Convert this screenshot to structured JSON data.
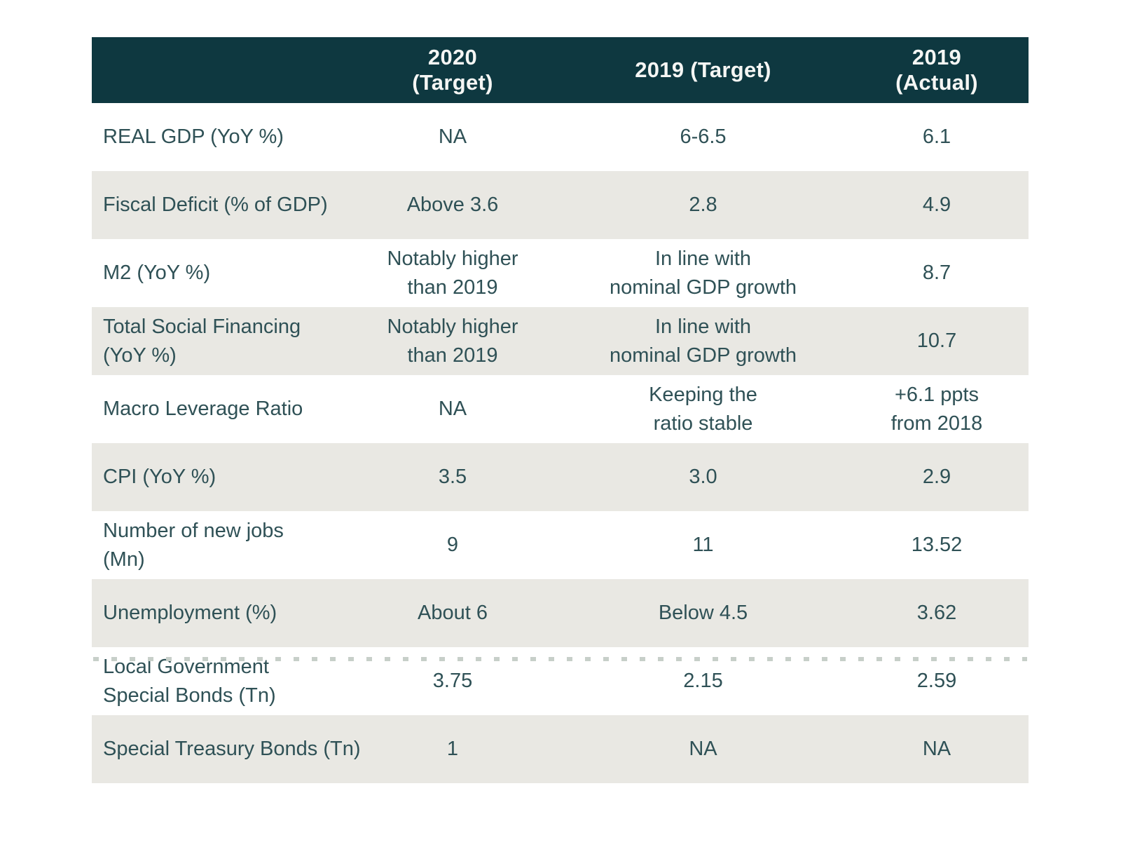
{
  "chart_data": {
    "type": "table",
    "title": "",
    "columns": [
      "",
      "2020 (Target)",
      "2019 (Target)",
      "2019 (Actual)"
    ],
    "rows": [
      {
        "label": "REAL GDP (YoY %)",
        "values": [
          "NA",
          "6-6.5",
          "6.1"
        ]
      },
      {
        "label": "Fiscal Deficit (% of GDP)",
        "values": [
          "Above 3.6",
          "2.8",
          "4.9"
        ]
      },
      {
        "label": "M2 (YoY %)",
        "values": [
          "Notably higher\nthan 2019",
          "In line with\nnominal GDP growth",
          "8.7"
        ]
      },
      {
        "label": "Total Social Financing\n(YoY %)",
        "values": [
          "Notably higher\nthan 2019",
          "In line with\nnominal GDP growth",
          "10.7"
        ]
      },
      {
        "label": "Macro Leverage Ratio",
        "values": [
          "NA",
          "Keeping the\nratio stable",
          "+6.1 ppts\nfrom 2018"
        ]
      },
      {
        "label": "CPI (YoY %)",
        "values": [
          "3.5",
          "3.0",
          "2.9"
        ]
      },
      {
        "label": "Number of new jobs\n(Mn)",
        "values": [
          "9",
          "11",
          "13.52"
        ]
      },
      {
        "label": "Unemployment (%)",
        "values": [
          "About 6",
          "Below 4.5",
          "3.62"
        ]
      },
      {
        "label": "Local Government\nSpecial Bonds (Tn)",
        "values": [
          "3.75",
          "2.15",
          "2.59"
        ],
        "dotted_top_divider": true
      },
      {
        "label": "Special Treasury Bonds (Tn)",
        "values": [
          "1",
          "NA",
          "NA"
        ]
      }
    ],
    "layout": {
      "header_position": "top",
      "striped": true,
      "stripe_pattern": "odd-rows-gray",
      "label_alignment": "left",
      "value_alignment": "center",
      "grid": "off"
    }
  },
  "colors": {
    "header_bg": "#0e3840",
    "header_text": "#f5f6f4",
    "row_bg": "#ffffff",
    "row_alt_bg": "#e9e8e3",
    "body_text": "#2f5156",
    "dotted_divider": "#c7cfc9"
  }
}
